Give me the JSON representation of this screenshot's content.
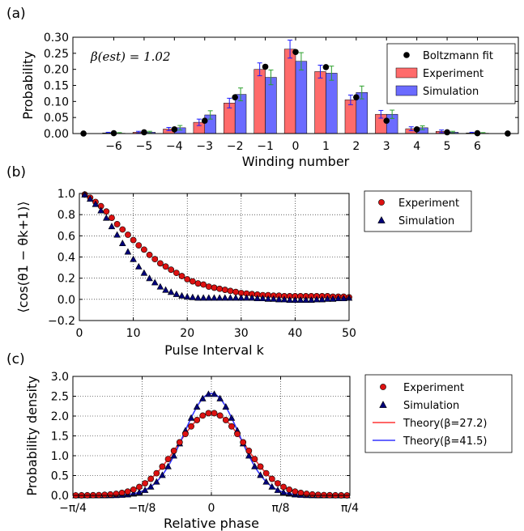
{
  "chart_data": [
    {
      "type": "bar",
      "panel_label": "(a)",
      "annotation": "β(est) = 1.02",
      "xlabel": "Winding number",
      "ylabel": "Probability",
      "ylim": [
        0,
        0.3
      ],
      "yticks": [
        "0.00",
        "0.05",
        "0.10",
        "0.15",
        "0.20",
        "0.25",
        "0.30"
      ],
      "categories": [
        -6,
        -5,
        -4,
        -3,
        -2,
        -1,
        0,
        1,
        2,
        3,
        4,
        5,
        6
      ],
      "xtick_labels": [
        "−6",
        "−5",
        "−4",
        "−3",
        "−2",
        "−1",
        "0",
        "1",
        "2",
        "3",
        "4",
        "5",
        "6"
      ],
      "legend_position": "top-right",
      "series": [
        {
          "name": "Boltzmann fit",
          "kind": "points",
          "color": "#000000",
          "x": [
            -7,
            -6,
            -5,
            -4,
            -3,
            -2,
            -1,
            0,
            1,
            2,
            3,
            4,
            5,
            6,
            7
          ],
          "values": [
            0.0002,
            0.001,
            0.004,
            0.013,
            0.04,
            0.113,
            0.208,
            0.254,
            0.207,
            0.113,
            0.04,
            0.013,
            0.004,
            0.001,
            0.0002
          ]
        },
        {
          "name": "Experiment",
          "kind": "bar",
          "color": "#ff6b6b",
          "error_color": "#1a1aff",
          "values": [
            0.002,
            0.004,
            0.014,
            0.035,
            0.095,
            0.2,
            0.263,
            0.193,
            0.105,
            0.06,
            0.015,
            0.007,
            0.002
          ],
          "errors": [
            0.002,
            0.003,
            0.005,
            0.01,
            0.015,
            0.02,
            0.028,
            0.02,
            0.015,
            0.012,
            0.006,
            0.004,
            0.002
          ]
        },
        {
          "name": "Simulation",
          "kind": "bar",
          "color": "#6b6bff",
          "error_color": "#2ca02c",
          "values": [
            0.001,
            0.004,
            0.018,
            0.058,
            0.122,
            0.175,
            0.225,
            0.188,
            0.128,
            0.06,
            0.018,
            0.004,
            0.001
          ],
          "errors": [
            0.002,
            0.003,
            0.007,
            0.013,
            0.02,
            0.023,
            0.027,
            0.022,
            0.02,
            0.013,
            0.006,
            0.003,
            0.002
          ]
        }
      ]
    },
    {
      "type": "scatter",
      "panel_label": "(b)",
      "xlabel": "Pulse Interval k",
      "ylabel": "⟨cos(θ1 − θk+1)⟩",
      "xlim": [
        0,
        50
      ],
      "ylim": [
        -0.2,
        1.0
      ],
      "xticks": [
        0,
        10,
        20,
        30,
        40,
        50
      ],
      "yticks": [
        "−0.2",
        "0.0",
        "0.2",
        "0.4",
        "0.6",
        "0.8",
        "1.0"
      ],
      "grid": true,
      "legend_position": "outside-right-top",
      "series": [
        {
          "name": "Experiment",
          "marker": "circle",
          "color": "#dd1111",
          "x": [
            1,
            2,
            3,
            4,
            5,
            6,
            7,
            8,
            9,
            10,
            11,
            12,
            13,
            14,
            15,
            16,
            17,
            18,
            19,
            20,
            21,
            22,
            23,
            24,
            25,
            26,
            27,
            28,
            29,
            30,
            31,
            32,
            33,
            34,
            35,
            36,
            37,
            38,
            39,
            40,
            41,
            42,
            43,
            44,
            45,
            46,
            47,
            48,
            49,
            50
          ],
          "values": [
            0.99,
            0.96,
            0.92,
            0.88,
            0.83,
            0.77,
            0.71,
            0.66,
            0.61,
            0.56,
            0.51,
            0.47,
            0.42,
            0.38,
            0.34,
            0.31,
            0.28,
            0.25,
            0.22,
            0.19,
            0.17,
            0.15,
            0.14,
            0.12,
            0.11,
            0.1,
            0.09,
            0.08,
            0.07,
            0.06,
            0.055,
            0.05,
            0.045,
            0.04,
            0.04,
            0.035,
            0.035,
            0.03,
            0.03,
            0.03,
            0.03,
            0.03,
            0.03,
            0.03,
            0.03,
            0.03,
            0.025,
            0.025,
            0.025,
            0.02
          ]
        },
        {
          "name": "Simulation",
          "marker": "triangle",
          "color": "#00007a",
          "x": [
            1,
            2,
            3,
            4,
            5,
            6,
            7,
            8,
            9,
            10,
            11,
            12,
            13,
            14,
            15,
            16,
            17,
            18,
            19,
            20,
            21,
            22,
            23,
            24,
            25,
            26,
            27,
            28,
            29,
            30,
            31,
            32,
            33,
            34,
            35,
            36,
            37,
            38,
            39,
            40,
            41,
            42,
            43,
            44,
            45,
            46,
            47,
            48,
            49,
            50
          ],
          "values": [
            0.99,
            0.95,
            0.9,
            0.84,
            0.77,
            0.69,
            0.61,
            0.53,
            0.45,
            0.38,
            0.31,
            0.25,
            0.2,
            0.16,
            0.12,
            0.09,
            0.07,
            0.05,
            0.035,
            0.025,
            0.02,
            0.015,
            0.015,
            0.015,
            0.015,
            0.015,
            0.015,
            0.015,
            0.015,
            0.015,
            0.015,
            0.015,
            0.01,
            0.01,
            0.005,
            0.005,
            0.0,
            0.0,
            -0.005,
            -0.005,
            -0.005,
            -0.005,
            -0.005,
            0.0,
            0.0,
            0.005,
            0.005,
            0.01,
            0.01,
            0.015
          ]
        }
      ]
    },
    {
      "type": "scatter",
      "panel_label": "(c)",
      "xlabel": "Relative phase",
      "ylabel": "Probability density",
      "xlim": [
        -0.7854,
        0.7854
      ],
      "ylim": [
        0,
        3.0
      ],
      "xticks": [
        -0.7854,
        -0.3927,
        0,
        0.3927,
        0.7854
      ],
      "xtick_labels": [
        "−π/4",
        "−π/8",
        "0",
        "π/8",
        "π/4"
      ],
      "yticks": [
        "0.0",
        "0.5",
        "1.0",
        "1.5",
        "2.0",
        "2.5",
        "3.0"
      ],
      "grid": true,
      "legend_position": "outside-right-top",
      "series": [
        {
          "name": "Experiment",
          "marker": "circle",
          "color": "#dd1111",
          "sigma": 0.1917,
          "peak": 2.08
        },
        {
          "name": "Simulation",
          "marker": "triangle",
          "color": "#00007a",
          "sigma": 0.155,
          "peak": 2.57
        },
        {
          "name": "Theory(β=27.2)",
          "marker": "line",
          "color": "#ff3333",
          "sigma": 0.1917,
          "peak": 2.08
        },
        {
          "name": "Theory(β=41.5)",
          "marker": "line",
          "color": "#3333ff",
          "sigma": 0.155,
          "peak": 2.57
        }
      ]
    }
  ]
}
